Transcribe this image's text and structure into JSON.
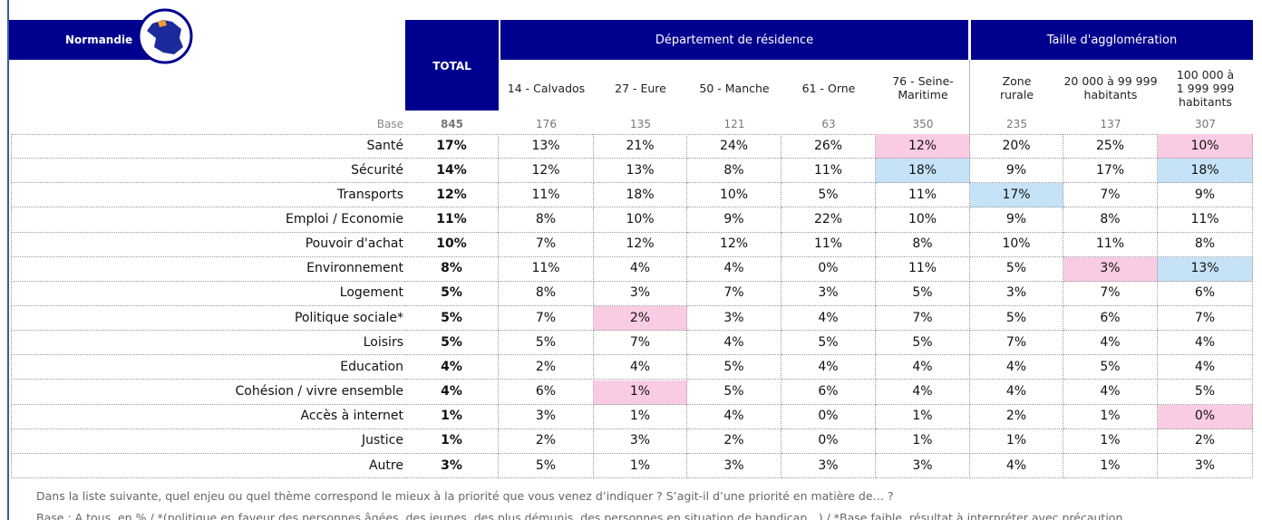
{
  "header": {
    "region": "Normandie",
    "total_label": "TOTAL",
    "groups": [
      "Département de résidence",
      "Taille d'agglomération"
    ],
    "columns": [
      [
        "14 - Calvados"
      ],
      [
        "27 - Eure"
      ],
      [
        "50 - Manche"
      ],
      [
        "61 - Orne"
      ],
      [
        "76 - Seine-",
        "Maritime"
      ],
      [
        "Zone",
        "rurale"
      ],
      [
        "20 000 à 99 999",
        "habitants"
      ],
      [
        "100 000 à",
        "1 999 999",
        "habitants"
      ]
    ]
  },
  "base": {
    "label": "Base",
    "values": [
      "845",
      "176",
      "135",
      "121",
      "63",
      "350",
      "235",
      "137",
      "307"
    ]
  },
  "highlight_colors": {
    "pink": "#f9cce3",
    "blue": "#c6e2f7"
  },
  "table": {
    "rows": [
      {
        "label": "Santé",
        "cells": [
          "17%",
          "13%",
          "21%",
          "24%",
          "26%",
          {
            "value": "12%",
            "highlight": "pink"
          },
          "20%",
          "25%",
          {
            "value": "10%",
            "highlight": "pink"
          }
        ]
      },
      {
        "label": "Sécurité",
        "cells": [
          "14%",
          "12%",
          "13%",
          "8%",
          "11%",
          {
            "value": "18%",
            "highlight": "blue"
          },
          "9%",
          "17%",
          {
            "value": "18%",
            "highlight": "blue"
          }
        ]
      },
      {
        "label": "Transports",
        "cells": [
          "12%",
          "11%",
          "18%",
          "10%",
          "5%",
          "11%",
          {
            "value": "17%",
            "highlight": "blue"
          },
          "7%",
          "9%"
        ]
      },
      {
        "label": "Emploi / Economie",
        "cells": [
          "11%",
          "8%",
          "10%",
          "9%",
          "22%",
          "10%",
          "9%",
          "8%",
          "11%"
        ]
      },
      {
        "label": "Pouvoir d'achat",
        "cells": [
          "10%",
          "7%",
          "12%",
          "12%",
          "11%",
          "8%",
          "10%",
          "11%",
          "8%"
        ]
      },
      {
        "label": "Environnement",
        "cells": [
          "8%",
          "11%",
          "4%",
          "4%",
          "0%",
          "11%",
          "5%",
          {
            "value": "3%",
            "highlight": "pink"
          },
          {
            "value": "13%",
            "highlight": "blue"
          }
        ]
      },
      {
        "label": "Logement",
        "cells": [
          "5%",
          "8%",
          "3%",
          "7%",
          "3%",
          "5%",
          "3%",
          "7%",
          "6%"
        ]
      },
      {
        "label": "Politique sociale*",
        "cells": [
          "5%",
          "7%",
          {
            "value": "2%",
            "highlight": "pink"
          },
          "3%",
          "4%",
          "7%",
          "5%",
          "6%",
          "7%"
        ]
      },
      {
        "label": "Loisirs",
        "cells": [
          "5%",
          "5%",
          "7%",
          "4%",
          "5%",
          "5%",
          "7%",
          "4%",
          "4%"
        ]
      },
      {
        "label": "Education",
        "cells": [
          "4%",
          "2%",
          "4%",
          "5%",
          "4%",
          "4%",
          "4%",
          "5%",
          "4%"
        ]
      },
      {
        "label": "Cohésion / vivre ensemble",
        "cells": [
          "4%",
          "6%",
          {
            "value": "1%",
            "highlight": "pink"
          },
          "5%",
          "6%",
          "4%",
          "4%",
          "4%",
          "5%"
        ]
      },
      {
        "label": "Accès à internet",
        "cells": [
          "1%",
          "3%",
          "1%",
          "4%",
          "0%",
          "1%",
          "2%",
          "1%",
          {
            "value": "0%",
            "highlight": "pink"
          }
        ]
      },
      {
        "label": "Justice",
        "cells": [
          "1%",
          "2%",
          "3%",
          "2%",
          "0%",
          "1%",
          "1%",
          "1%",
          "2%"
        ]
      },
      {
        "label": "Autre",
        "cells": [
          "3%",
          "5%",
          "1%",
          "3%",
          "3%",
          "3%",
          "4%",
          "1%",
          "3%"
        ]
      }
    ]
  },
  "footer": [
    "Dans la liste suivante, quel enjeu ou quel thème correspond le mieux à la priorité que vous venez d’indiquer ? S’agit-il d’une priorité en matière de… ?",
    "Base : A tous, en % / *(politique en faveur des personnes âgées, des jeunes, des plus démunis, des personnes en situation de handicap…) / *Base faible, résultat à interpréter avec précaution"
  ]
}
